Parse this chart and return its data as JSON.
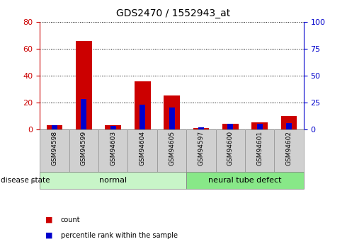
{
  "title": "GDS2470 / 1552943_at",
  "samples": [
    "GSM94598",
    "GSM94599",
    "GSM94603",
    "GSM94604",
    "GSM94605",
    "GSM94597",
    "GSM94600",
    "GSM94601",
    "GSM94602"
  ],
  "red_values": [
    3,
    66,
    3,
    36,
    25,
    1,
    4,
    5,
    10
  ],
  "blue_values": [
    4,
    28,
    3,
    23,
    20,
    2,
    5,
    5,
    6
  ],
  "groups": [
    {
      "label": "normal",
      "start": 0,
      "end": 5,
      "color": "#c8f5c8"
    },
    {
      "label": "neural tube defect",
      "start": 5,
      "end": 9,
      "color": "#88e888"
    }
  ],
  "left_ylim": [
    0,
    80
  ],
  "right_ylim": [
    0,
    100
  ],
  "left_yticks": [
    0,
    20,
    40,
    60,
    80
  ],
  "right_yticks": [
    0,
    25,
    50,
    75,
    100
  ],
  "left_tick_color": "#cc0000",
  "right_tick_color": "#0000cc",
  "red_color": "#cc0000",
  "blue_color": "#0000cc",
  "bg_color": "#ffffff",
  "plot_bg": "#ffffff",
  "legend_items": [
    {
      "label": "count",
      "color": "#cc0000"
    },
    {
      "label": "percentile rank within the sample",
      "color": "#0000cc"
    }
  ],
  "disease_label": "disease state",
  "bar_bg_color": "#d0d0d0",
  "bar_border_color": "#999999"
}
